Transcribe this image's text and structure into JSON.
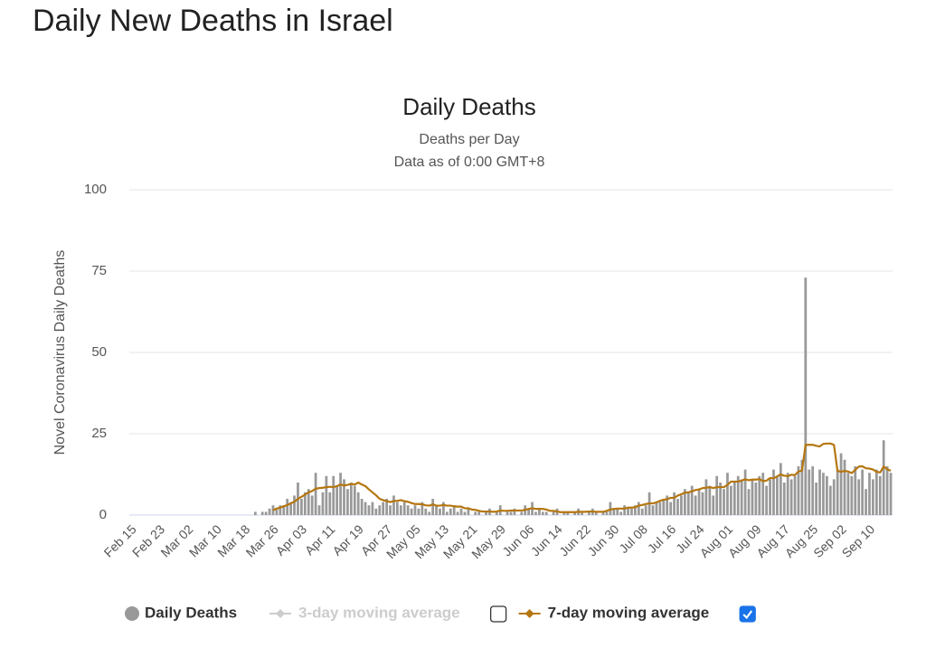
{
  "page_title": "Daily New Deaths in Israel",
  "chart_data": {
    "type": "bar",
    "title": "Daily Deaths",
    "subtitle": "Deaths per Day",
    "note": "Data as of 0:00 GMT+8",
    "y_label": "Novel Coronavirus Daily Deaths",
    "ylim": [
      0,
      100
    ],
    "yticks": [
      0,
      25,
      50,
      75,
      100
    ],
    "grid": true,
    "categories": [
      "Feb 15",
      null,
      null,
      null,
      null,
      null,
      null,
      null,
      "Feb 23",
      null,
      null,
      null,
      null,
      null,
      null,
      null,
      "Mar 02",
      null,
      null,
      null,
      null,
      null,
      null,
      null,
      "Mar 10",
      null,
      null,
      null,
      null,
      null,
      null,
      null,
      "Mar 18",
      null,
      null,
      null,
      null,
      null,
      null,
      null,
      "Mar 26",
      null,
      null,
      null,
      null,
      null,
      null,
      null,
      "Apr 03",
      null,
      null,
      null,
      null,
      null,
      null,
      null,
      "Apr 11",
      null,
      null,
      null,
      null,
      null,
      null,
      null,
      "Apr 19",
      null,
      null,
      null,
      null,
      null,
      null,
      null,
      "Apr 27",
      null,
      null,
      null,
      null,
      null,
      null,
      null,
      "May 05",
      null,
      null,
      null,
      null,
      null,
      null,
      null,
      "May 13",
      null,
      null,
      null,
      null,
      null,
      null,
      null,
      "May 21",
      null,
      null,
      null,
      null,
      null,
      null,
      null,
      "May 29",
      null,
      null,
      null,
      null,
      null,
      null,
      null,
      "Jun 06",
      null,
      null,
      null,
      null,
      null,
      null,
      null,
      "Jun 14",
      null,
      null,
      null,
      null,
      null,
      null,
      null,
      "Jun 22",
      null,
      null,
      null,
      null,
      null,
      null,
      null,
      "Jun 30",
      null,
      null,
      null,
      null,
      null,
      null,
      null,
      "Jul 08",
      null,
      null,
      null,
      null,
      null,
      null,
      null,
      "Jul 16",
      null,
      null,
      null,
      null,
      null,
      null,
      null,
      "Jul 24",
      null,
      null,
      null,
      null,
      null,
      null,
      null,
      "Aug 01",
      null,
      null,
      null,
      null,
      null,
      null,
      null,
      "Aug 09",
      null,
      null,
      null,
      null,
      null,
      null,
      null,
      "Aug 17",
      null,
      null,
      null,
      null,
      null,
      null,
      null,
      "Aug 25",
      null,
      null,
      null,
      null,
      null,
      null,
      null,
      "Sep 02",
      null,
      null,
      null,
      null,
      null,
      null,
      null,
      "Sep 10",
      null,
      null,
      null,
      null,
      null,
      null
    ],
    "series": [
      {
        "name": "Daily Deaths",
        "color": "#999999",
        "type": "bar",
        "values": [
          0,
          0,
          0,
          0,
          0,
          0,
          0,
          0,
          0,
          0,
          0,
          0,
          0,
          0,
          0,
          0,
          0,
          0,
          0,
          0,
          0,
          0,
          0,
          0,
          0,
          0,
          0,
          0,
          0,
          0,
          0,
          0,
          0,
          0,
          0,
          1,
          0,
          1,
          1,
          2,
          3,
          2,
          3,
          3,
          5,
          4,
          6,
          10,
          5,
          7,
          8,
          6,
          13,
          3,
          7,
          12,
          7,
          12,
          9,
          13,
          11,
          8,
          10,
          9,
          7,
          5,
          4,
          3,
          4,
          2,
          3,
          4,
          5,
          3,
          6,
          4,
          3,
          4,
          3,
          2,
          3,
          2,
          4,
          2,
          1,
          5,
          3,
          2,
          4,
          1,
          2,
          3,
          1,
          2,
          1,
          2,
          0,
          1,
          1,
          0,
          1,
          2,
          0,
          1,
          3,
          0,
          1,
          1,
          2,
          0,
          1,
          3,
          2,
          4,
          1,
          2,
          1,
          1,
          0,
          1,
          2,
          0,
          1,
          1,
          0,
          1,
          2,
          1,
          0,
          1,
          2,
          1,
          0,
          1,
          1,
          4,
          2,
          2,
          1,
          3,
          2,
          2,
          3,
          4,
          2,
          3,
          7,
          3,
          4,
          4,
          5,
          6,
          4,
          7,
          5,
          6,
          8,
          7,
          9,
          6,
          8,
          7,
          11,
          9,
          6,
          12,
          10,
          8,
          13,
          9,
          10,
          12,
          11,
          14,
          8,
          11,
          10,
          12,
          13,
          9,
          11,
          14,
          12,
          16,
          10,
          13,
          11,
          12,
          15,
          17,
          73,
          14,
          15,
          10,
          14,
          13,
          12,
          9,
          11,
          14,
          19,
          17,
          13,
          12,
          15,
          11,
          14,
          8,
          13,
          11,
          14,
          12,
          23,
          15,
          13
        ]
      },
      {
        "name": "7-day moving average",
        "color": "#b5760f",
        "type": "line",
        "values": [
          null,
          null,
          null,
          null,
          null,
          null,
          null,
          null,
          null,
          null,
          null,
          null,
          null,
          null,
          null,
          null,
          null,
          null,
          null,
          null,
          null,
          null,
          null,
          null,
          null,
          null,
          null,
          null,
          null,
          null,
          null,
          null,
          null,
          null,
          null,
          null,
          null,
          null,
          null,
          null,
          1.5,
          2,
          2.3,
          2.7,
          3.1,
          3.6,
          4.1,
          5,
          5.6,
          6.3,
          7,
          7.4,
          8.1,
          8.3,
          8.4,
          8.6,
          8.7,
          8.6,
          8.9,
          9.4,
          9.1,
          9.3,
          9.6,
          9.4,
          10,
          9.4,
          8.9,
          7.9,
          7,
          6.1,
          5,
          4.6,
          4.3,
          4,
          4.3,
          4.4,
          4.6,
          4.3,
          4.1,
          3.7,
          3.4,
          3.4,
          3.3,
          3,
          2.9,
          3.3,
          2.9,
          2.9,
          3.1,
          2.9,
          2.9,
          2.7,
          2.6,
          2.6,
          2.1,
          2.1,
          1.7,
          1.6,
          1.3,
          1.1,
          1.1,
          1.1,
          1,
          1.1,
          1.4,
          1.3,
          1.3,
          1.4,
          1.4,
          1.4,
          1.4,
          1.6,
          1.9,
          2.1,
          1.9,
          1.9,
          1.9,
          1.7,
          1.3,
          1.3,
          1.1,
          0.9,
          0.9,
          0.9,
          0.9,
          0.9,
          1,
          1,
          1,
          1.1,
          1.1,
          1,
          1,
          1,
          1.3,
          1.7,
          1.9,
          2,
          2,
          2,
          2.3,
          2.3,
          2.4,
          2.9,
          3.1,
          3.4,
          3.6,
          3.6,
          3.9,
          4.4,
          4.7,
          4.9,
          5.3,
          5.3,
          6,
          6.4,
          6.9,
          7,
          7.3,
          7.7,
          7.9,
          8.3,
          8.4,
          8.6,
          8.3,
          8.6,
          8.6,
          8.6,
          9.3,
          10.3,
          10.3,
          10.3,
          10.6,
          11,
          10.7,
          10.9,
          10.9,
          11.1,
          10.4,
          10.6,
          11.4,
          11.3,
          11.9,
          12.5,
          12.1,
          12,
          12.4,
          12.3,
          13.4,
          13.7,
          21.6,
          21.6,
          21.6,
          21.3,
          21.1,
          21.9,
          22,
          22,
          21.6,
          13.6,
          13.3,
          13.6,
          13.4,
          12.9,
          13.9,
          14.9,
          15,
          14.4,
          14.3,
          14,
          13.3,
          13.1,
          14.9,
          14.1,
          13.6
        ]
      }
    ],
    "legend": [
      {
        "name": "Daily Deaths",
        "color": "#999999",
        "enabled": true
      },
      {
        "name": "3-day moving average",
        "color": "#cccccc",
        "enabled": false,
        "checked": false
      },
      {
        "name": "7-day moving average",
        "color": "#b5760f",
        "enabled": true,
        "checked": true
      }
    ]
  }
}
